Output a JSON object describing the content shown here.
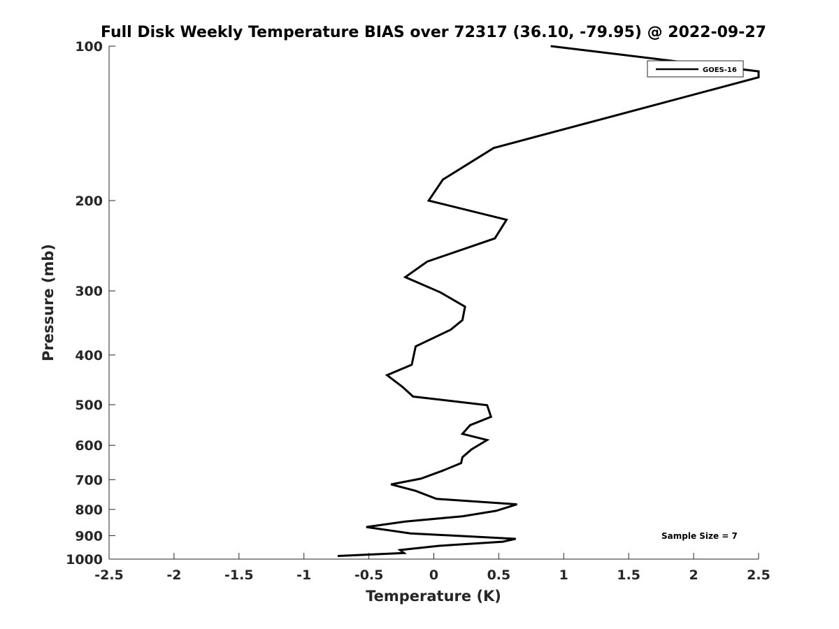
{
  "chart_data": {
    "type": "line",
    "title": "Full Disk Weekly Temperature BIAS over 72317 (36.10, -79.95) @ 2022-09-27",
    "xlabel": "Temperature (K)",
    "ylabel": "Pressure (mb)",
    "xlim": [
      -2.5,
      2.5
    ],
    "ylim": [
      100,
      1000
    ],
    "y_scale": "log",
    "y_reversed": true,
    "grid": false,
    "xticks": [
      -2.5,
      -2,
      -1.5,
      -1,
      -0.5,
      0,
      0.5,
      1,
      1.5,
      2,
      2.5
    ],
    "xtick_labels": [
      "-2.5",
      "-2",
      "-1.5",
      "-1",
      "-0.5",
      "0",
      "0.5",
      "1",
      "1.5",
      "2",
      "2.5"
    ],
    "yticks": [
      100,
      200,
      300,
      400,
      500,
      600,
      700,
      800,
      900,
      1000
    ],
    "ytick_labels": [
      "100",
      "200",
      "300",
      "400",
      "500",
      "600",
      "700",
      "800",
      "900",
      "1000"
    ],
    "legend_position": "top-right",
    "annotation": "Sample Size = 7",
    "series": [
      {
        "name": "GOES-16",
        "color": "#000000",
        "points": [
          {
            "x": 0.9,
            "y": 100
          },
          {
            "x": 2.5,
            "y": 112
          },
          {
            "x": 2.5,
            "y": 115
          },
          {
            "x": 0.46,
            "y": 158
          },
          {
            "x": 0.07,
            "y": 182
          },
          {
            "x": -0.04,
            "y": 200
          },
          {
            "x": 0.56,
            "y": 218
          },
          {
            "x": 0.47,
            "y": 237
          },
          {
            "x": -0.05,
            "y": 263
          },
          {
            "x": -0.22,
            "y": 282
          },
          {
            "x": 0.05,
            "y": 302
          },
          {
            "x": 0.24,
            "y": 322
          },
          {
            "x": 0.22,
            "y": 342
          },
          {
            "x": 0.13,
            "y": 357
          },
          {
            "x": -0.14,
            "y": 385
          },
          {
            "x": -0.17,
            "y": 418
          },
          {
            "x": -0.36,
            "y": 438
          },
          {
            "x": -0.24,
            "y": 462
          },
          {
            "x": -0.16,
            "y": 482
          },
          {
            "x": 0.41,
            "y": 501
          },
          {
            "x": 0.44,
            "y": 528
          },
          {
            "x": 0.28,
            "y": 548
          },
          {
            "x": 0.22,
            "y": 570
          },
          {
            "x": 0.41,
            "y": 586
          },
          {
            "x": 0.29,
            "y": 611
          },
          {
            "x": 0.22,
            "y": 633
          },
          {
            "x": 0.21,
            "y": 650
          },
          {
            "x": 0.07,
            "y": 672
          },
          {
            "x": -0.1,
            "y": 697
          },
          {
            "x": -0.33,
            "y": 715
          },
          {
            "x": -0.14,
            "y": 736
          },
          {
            "x": 0.02,
            "y": 763
          },
          {
            "x": 0.64,
            "y": 782
          },
          {
            "x": 0.48,
            "y": 805
          },
          {
            "x": 0.22,
            "y": 825
          },
          {
            "x": -0.22,
            "y": 845
          },
          {
            "x": -0.52,
            "y": 866
          },
          {
            "x": -0.18,
            "y": 891
          },
          {
            "x": 0.63,
            "y": 913
          },
          {
            "x": 0.53,
            "y": 925
          },
          {
            "x": 0.04,
            "y": 942
          },
          {
            "x": -0.26,
            "y": 960
          },
          {
            "x": -0.23,
            "y": 973
          },
          {
            "x": -0.74,
            "y": 986
          }
        ]
      }
    ]
  }
}
